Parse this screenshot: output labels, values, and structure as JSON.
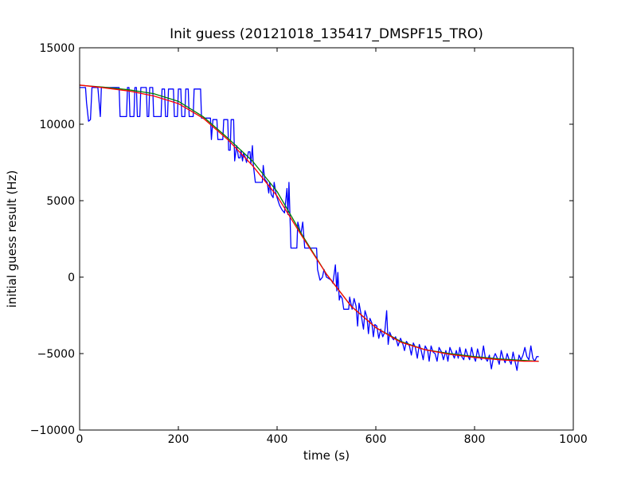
{
  "chart_data": {
    "type": "line",
    "title": "Init guess (20121018_135417_DMSPF15_TRO)",
    "xlabel": "time (s)",
    "ylabel": "initial guess result (Hz)",
    "xlim": [
      0,
      1000
    ],
    "ylim": [
      -10000,
      15000
    ],
    "x_ticks": [
      0,
      200,
      400,
      600,
      800,
      1000
    ],
    "y_ticks": [
      -10000,
      -5000,
      0,
      5000,
      10000,
      15000
    ],
    "x_tick_labels": [
      "0",
      "200",
      "400",
      "600",
      "800",
      "1000"
    ],
    "y_tick_labels": [
      "−10000",
      "−5000",
      "0",
      "5000",
      "10000",
      "15000"
    ],
    "grid": false,
    "legend": "none",
    "series": [
      {
        "color": "#0000ff",
        "points": [
          [
            0,
            12400
          ],
          [
            12,
            12400
          ],
          [
            14,
            11400
          ],
          [
            18,
            10200
          ],
          [
            22,
            10300
          ],
          [
            25,
            12400
          ],
          [
            33,
            12400
          ],
          [
            37,
            12400
          ],
          [
            42,
            10500
          ],
          [
            44,
            12400
          ],
          [
            55,
            12400
          ],
          [
            70,
            12400
          ],
          [
            80,
            12400
          ],
          [
            82,
            10500
          ],
          [
            95,
            10500
          ],
          [
            97,
            12400
          ],
          [
            100,
            12400
          ],
          [
            102,
            10500
          ],
          [
            110,
            10500
          ],
          [
            112,
            12400
          ],
          [
            115,
            12400
          ],
          [
            117,
            10500
          ],
          [
            122,
            10500
          ],
          [
            124,
            12400
          ],
          [
            135,
            12400
          ],
          [
            137,
            10500
          ],
          [
            140,
            10500
          ],
          [
            142,
            12400
          ],
          [
            148,
            12400
          ],
          [
            150,
            10500
          ],
          [
            165,
            10500
          ],
          [
            167,
            12300
          ],
          [
            172,
            12300
          ],
          [
            174,
            10500
          ],
          [
            178,
            10500
          ],
          [
            180,
            12300
          ],
          [
            190,
            12300
          ],
          [
            192,
            10500
          ],
          [
            198,
            10500
          ],
          [
            200,
            12300
          ],
          [
            205,
            12300
          ],
          [
            207,
            10500
          ],
          [
            213,
            10500
          ],
          [
            215,
            12300
          ],
          [
            220,
            12300
          ],
          [
            222,
            10500
          ],
          [
            230,
            10500
          ],
          [
            232,
            12300
          ],
          [
            245,
            12300
          ],
          [
            247,
            10400
          ],
          [
            265,
            10400
          ],
          [
            267,
            9000
          ],
          [
            270,
            10300
          ],
          [
            278,
            10300
          ],
          [
            280,
            9000
          ],
          [
            290,
            9000
          ],
          [
            292,
            10300
          ],
          [
            300,
            10300
          ],
          [
            302,
            8300
          ],
          [
            305,
            8300
          ],
          [
            307,
            10300
          ],
          [
            312,
            10300
          ],
          [
            314,
            7600
          ],
          [
            318,
            8600
          ],
          [
            322,
            7800
          ],
          [
            325,
            7800
          ],
          [
            327,
            8300
          ],
          [
            330,
            7600
          ],
          [
            332,
            8100
          ],
          [
            336,
            7800
          ],
          [
            338,
            7500
          ],
          [
            342,
            8200
          ],
          [
            345,
            8200
          ],
          [
            347,
            7400
          ],
          [
            350,
            8600
          ],
          [
            352,
            7300
          ],
          [
            356,
            6200
          ],
          [
            370,
            6200
          ],
          [
            372,
            7300
          ],
          [
            375,
            6400
          ],
          [
            380,
            6200
          ],
          [
            383,
            5500
          ],
          [
            385,
            6200
          ],
          [
            388,
            5400
          ],
          [
            392,
            5200
          ],
          [
            394,
            6200
          ],
          [
            398,
            5400
          ],
          [
            402,
            5000
          ],
          [
            405,
            4700
          ],
          [
            410,
            4400
          ],
          [
            415,
            4200
          ],
          [
            420,
            5800
          ],
          [
            422,
            4100
          ],
          [
            424,
            6200
          ],
          [
            428,
            1900
          ],
          [
            440,
            1900
          ],
          [
            442,
            3600
          ],
          [
            448,
            2800
          ],
          [
            452,
            3600
          ],
          [
            456,
            1900
          ],
          [
            480,
            1900
          ],
          [
            482,
            500
          ],
          [
            487,
            -200
          ],
          [
            492,
            0
          ],
          [
            495,
            500
          ],
          [
            500,
            0
          ],
          [
            510,
            -200
          ],
          [
            513,
            -400
          ],
          [
            518,
            800
          ],
          [
            521,
            -900
          ],
          [
            523,
            300
          ],
          [
            526,
            -1500
          ],
          [
            528,
            -1200
          ],
          [
            532,
            -1400
          ],
          [
            535,
            -2100
          ],
          [
            545,
            -2100
          ],
          [
            547,
            -1300
          ],
          [
            552,
            -2100
          ],
          [
            556,
            -1400
          ],
          [
            560,
            -1900
          ],
          [
            563,
            -3200
          ],
          [
            566,
            -1700
          ],
          [
            570,
            -2400
          ],
          [
            575,
            -3400
          ],
          [
            578,
            -2200
          ],
          [
            582,
            -2600
          ],
          [
            585,
            -3700
          ],
          [
            588,
            -2700
          ],
          [
            592,
            -3000
          ],
          [
            595,
            -3900
          ],
          [
            598,
            -3100
          ],
          [
            602,
            -3200
          ],
          [
            606,
            -4000
          ],
          [
            610,
            -3400
          ],
          [
            614,
            -3900
          ],
          [
            618,
            -3600
          ],
          [
            622,
            -2200
          ],
          [
            625,
            -4400
          ],
          [
            628,
            -3600
          ],
          [
            632,
            -3900
          ],
          [
            636,
            -4100
          ],
          [
            640,
            -3900
          ],
          [
            645,
            -4500
          ],
          [
            650,
            -4000
          ],
          [
            655,
            -4400
          ],
          [
            658,
            -4800
          ],
          [
            662,
            -4200
          ],
          [
            668,
            -4500
          ],
          [
            672,
            -5100
          ],
          [
            676,
            -4300
          ],
          [
            680,
            -4600
          ],
          [
            684,
            -5300
          ],
          [
            688,
            -4400
          ],
          [
            692,
            -4800
          ],
          [
            696,
            -5400
          ],
          [
            700,
            -4500
          ],
          [
            705,
            -4800
          ],
          [
            708,
            -5500
          ],
          [
            712,
            -4500
          ],
          [
            716,
            -4900
          ],
          [
            720,
            -5000
          ],
          [
            724,
            -5500
          ],
          [
            728,
            -4600
          ],
          [
            733,
            -4900
          ],
          [
            737,
            -5400
          ],
          [
            742,
            -4800
          ],
          [
            746,
            -5500
          ],
          [
            750,
            -4600
          ],
          [
            755,
            -5000
          ],
          [
            759,
            -5300
          ],
          [
            763,
            -4800
          ],
          [
            767,
            -5300
          ],
          [
            770,
            -4600
          ],
          [
            774,
            -5200
          ],
          [
            778,
            -5400
          ],
          [
            782,
            -4700
          ],
          [
            786,
            -5100
          ],
          [
            790,
            -5400
          ],
          [
            794,
            -4600
          ],
          [
            798,
            -5200
          ],
          [
            802,
            -5500
          ],
          [
            806,
            -4700
          ],
          [
            810,
            -5200
          ],
          [
            814,
            -5400
          ],
          [
            818,
            -4500
          ],
          [
            822,
            -5300
          ],
          [
            826,
            -5500
          ],
          [
            830,
            -5100
          ],
          [
            834,
            -6000
          ],
          [
            838,
            -5300
          ],
          [
            842,
            -5000
          ],
          [
            846,
            -5300
          ],
          [
            850,
            -5700
          ],
          [
            854,
            -4800
          ],
          [
            858,
            -5300
          ],
          [
            862,
            -5600
          ],
          [
            866,
            -5000
          ],
          [
            870,
            -5400
          ],
          [
            874,
            -5700
          ],
          [
            878,
            -4900
          ],
          [
            882,
            -5500
          ],
          [
            886,
            -6100
          ],
          [
            890,
            -5100
          ],
          [
            894,
            -5400
          ],
          [
            898,
            -5100
          ],
          [
            902,
            -4600
          ],
          [
            906,
            -5200
          ],
          [
            910,
            -5400
          ],
          [
            914,
            -4500
          ],
          [
            918,
            -5300
          ],
          [
            922,
            -5500
          ],
          [
            926,
            -5200
          ],
          [
            930,
            -5200
          ]
        ]
      },
      {
        "color": "#008000",
        "points": [
          [
            0,
            12550
          ],
          [
            50,
            12420
          ],
          [
            100,
            12250
          ],
          [
            150,
            12000
          ],
          [
            200,
            11500
          ],
          [
            250,
            10500
          ],
          [
            300,
            9100
          ],
          [
            350,
            7600
          ],
          [
            400,
            5600
          ],
          [
            450,
            2800
          ],
          [
            500,
            200
          ],
          [
            550,
            -1900
          ],
          [
            600,
            -3300
          ],
          [
            650,
            -4200
          ],
          [
            700,
            -4750
          ],
          [
            750,
            -5000
          ],
          [
            800,
            -5200
          ],
          [
            850,
            -5350
          ],
          [
            900,
            -5450
          ],
          [
            930,
            -5500
          ]
        ]
      },
      {
        "color": "#ff0000",
        "points": [
          [
            0,
            12560
          ],
          [
            50,
            12380
          ],
          [
            100,
            12170
          ],
          [
            150,
            11850
          ],
          [
            200,
            11350
          ],
          [
            250,
            10400
          ],
          [
            300,
            9000
          ],
          [
            350,
            7300
          ],
          [
            400,
            5300
          ],
          [
            450,
            2700
          ],
          [
            500,
            200
          ],
          [
            550,
            -1900
          ],
          [
            600,
            -3300
          ],
          [
            650,
            -4250
          ],
          [
            700,
            -4750
          ],
          [
            750,
            -5050
          ],
          [
            800,
            -5250
          ],
          [
            850,
            -5400
          ],
          [
            900,
            -5500
          ],
          [
            930,
            -5500
          ]
        ]
      }
    ]
  }
}
